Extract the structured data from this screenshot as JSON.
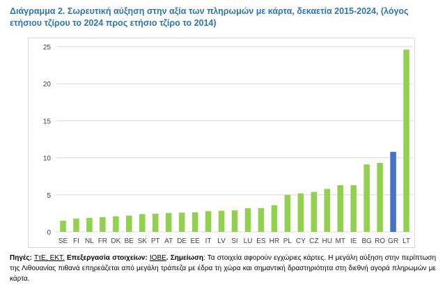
{
  "title_text": "Διάγραμμα 2. Σωρευτική αύξηση στην αξία των πληρωμών με κάρτα, δεκαετία 2015-2024, (λόγος ετήσιου τζίρου το 2024 προς ετήσιο τζίρο το 2014)",
  "chart_data": {
    "type": "bar",
    "title": "",
    "xlabel": "",
    "ylabel": "",
    "ylim": [
      0,
      25
    ],
    "yticks": [
      0,
      5,
      10,
      15,
      20,
      25
    ],
    "grid": true,
    "legend": "none",
    "categories": [
      "SE",
      "FI",
      "NL",
      "FR",
      "DK",
      "BE",
      "SK",
      "PT",
      "AT",
      "DE",
      "EE",
      "IT",
      "LV",
      "SI",
      "LU",
      "ES",
      "HR",
      "PL",
      "CY",
      "CZ",
      "HU",
      "MT",
      "IE",
      "BG",
      "RO",
      "GR",
      "LT"
    ],
    "values": [
      1.5,
      1.8,
      1.9,
      2.0,
      2.1,
      2.2,
      2.4,
      2.45,
      2.55,
      2.6,
      2.65,
      2.8,
      2.85,
      2.9,
      3.2,
      3.2,
      3.6,
      5.0,
      5.2,
      5.4,
      5.8,
      6.3,
      6.3,
      9.1,
      9.3,
      10.8,
      24.6
    ],
    "colors": {
      "default": "#92d050",
      "highlight": "#4472c4",
      "grid": "#d9d9d9",
      "tick_text": "#404040"
    },
    "highlight_category": "GR"
  },
  "source": {
    "label": "Πηγές:",
    "sources": "ΤτΕ, ΕΚΤ.",
    "processing_label": "Επεξεργασία στοιχείων:",
    "processor": "ΙΟΒΕ",
    "note_label": "Σημείωση",
    "note_text": ": Τα στοιχεία αφορούν εγχώριες κάρτες. Η μεγάλη αύξηση στην περίπτωση της Λιθουανίας πιθανά επηρεάζεται από μεγάλη τράπεζα με έδρα τη χώρα και σημαντική δραστηριότητα στη διεθνή αγορά πληρωμών με κάρτα."
  }
}
